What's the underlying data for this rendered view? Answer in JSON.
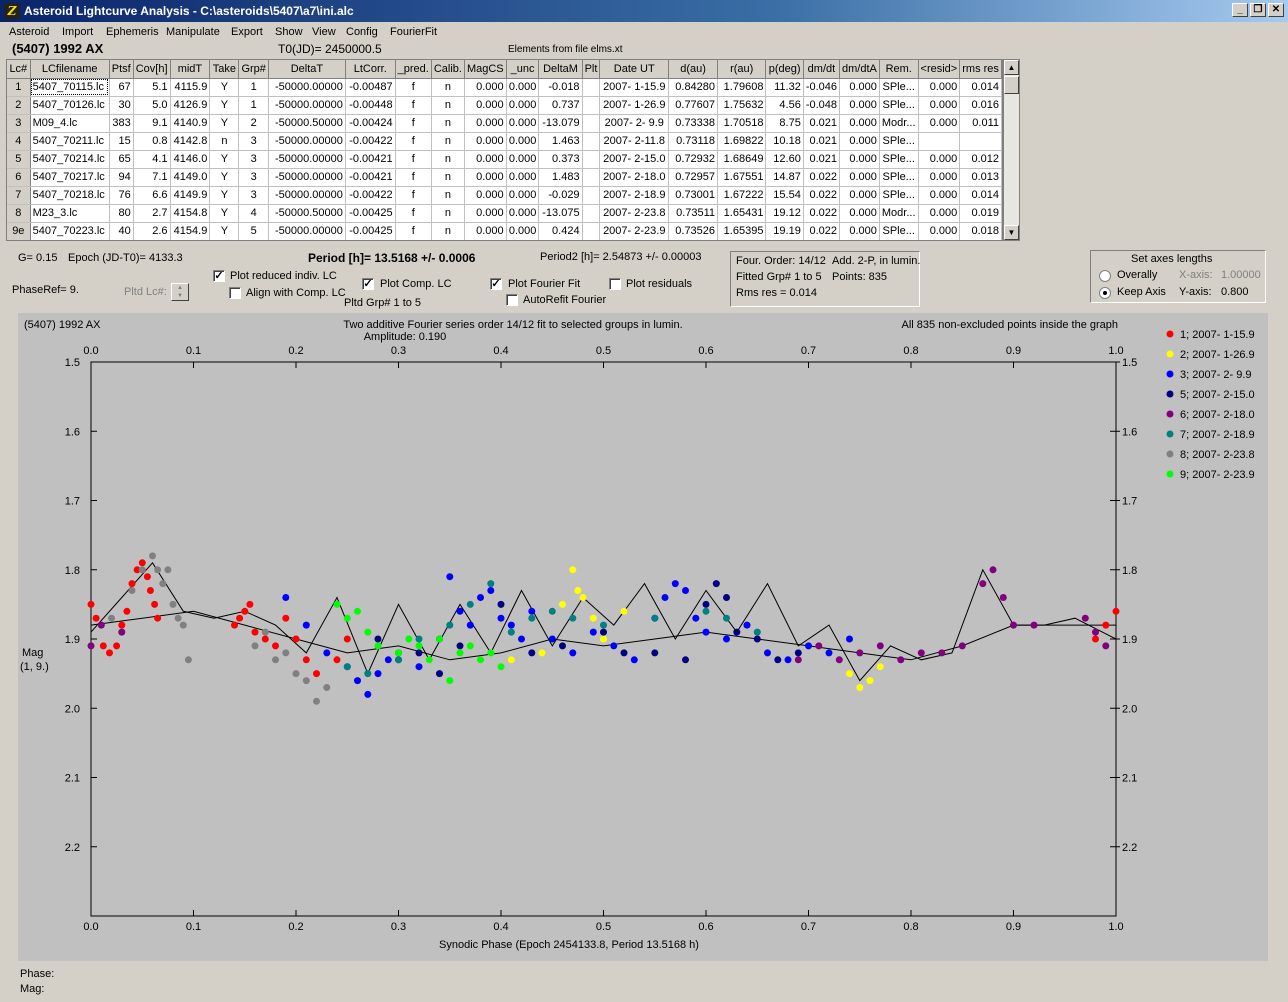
{
  "window": {
    "title": "Asteroid Lightcurve Analysis - C:\\asteroids\\5407\\a7\\ini.alc"
  },
  "menu": [
    "Asteroid",
    "Import",
    "Ephemeris",
    "Manipulate",
    "Export",
    "Show",
    "View",
    "Config",
    "FourierFit"
  ],
  "header": {
    "object": "(5407) 1992 AX",
    "t0": "T0(JD)= 2450000.5",
    "elements": "Elements from file elms.xt"
  },
  "table": {
    "columns": [
      "Lc#",
      "LCfilename",
      "Ptsf",
      "Cov[h]",
      "midT",
      "Take",
      "Grp#",
      "DeltaT",
      "LtCorr.",
      "_pred.",
      "Calib.",
      "MagCS",
      "_unc",
      "DeltaM",
      "Plt",
      "Date UT",
      "d(au)",
      "r(au)",
      "p(deg)",
      "dm/dt",
      "dm/dtA",
      "Rem.",
      "<resid>",
      "rms res"
    ],
    "rows": [
      [
        "1",
        "5407_70115.lc",
        "67",
        "5.1",
        "4115.9",
        "Y",
        "1",
        "-50000.00000",
        "-0.00487",
        "f",
        "n",
        "0.000",
        "0.000",
        "-0.018",
        "",
        "2007- 1-15.9",
        "0.84280",
        "1.79608",
        "11.32",
        "-0.046",
        "0.000",
        "SPle...",
        "0.000",
        "0.014"
      ],
      [
        "2",
        "5407_70126.lc",
        "30",
        "5.0",
        "4126.9",
        "Y",
        "1",
        "-50000.00000",
        "-0.00448",
        "f",
        "n",
        "0.000",
        "0.000",
        "0.737",
        "",
        "2007- 1-26.9",
        "0.77607",
        "1.75632",
        "4.56",
        "-0.048",
        "0.000",
        "SPle...",
        "0.000",
        "0.016"
      ],
      [
        "3",
        "M09_4.lc",
        "383",
        "9.1",
        "4140.9",
        "Y",
        "2",
        "-50000.50000",
        "-0.00424",
        "f",
        "n",
        "0.000",
        "0.000",
        "-13.079",
        "",
        "2007- 2- 9.9",
        "0.73338",
        "1.70518",
        "8.75",
        "0.021",
        "0.000",
        "Modr...",
        "0.000",
        "0.011"
      ],
      [
        "4",
        "5407_70211.lc",
        "15",
        "0.8",
        "4142.8",
        "n",
        "3",
        "-50000.00000",
        "-0.00422",
        "f",
        "n",
        "0.000",
        "0.000",
        "1.463",
        "",
        "2007- 2-11.8",
        "0.73118",
        "1.69822",
        "10.18",
        "0.021",
        "0.000",
        "SPle...",
        "",
        ""
      ],
      [
        "5",
        "5407_70214.lc",
        "65",
        "4.1",
        "4146.0",
        "Y",
        "3",
        "-50000.00000",
        "-0.00421",
        "f",
        "n",
        "0.000",
        "0.000",
        "0.373",
        "",
        "2007- 2-15.0",
        "0.72932",
        "1.68649",
        "12.60",
        "0.021",
        "0.000",
        "SPle...",
        "0.000",
        "0.012"
      ],
      [
        "6",
        "5407_70217.lc",
        "94",
        "7.1",
        "4149.0",
        "Y",
        "3",
        "-50000.00000",
        "-0.00421",
        "f",
        "n",
        "0.000",
        "0.000",
        "1.483",
        "",
        "2007- 2-18.0",
        "0.72957",
        "1.67551",
        "14.87",
        "0.022",
        "0.000",
        "SPle...",
        "0.000",
        "0.013"
      ],
      [
        "7",
        "5407_70218.lc",
        "76",
        "6.6",
        "4149.9",
        "Y",
        "3",
        "-50000.00000",
        "-0.00422",
        "f",
        "n",
        "0.000",
        "0.000",
        "-0.029",
        "",
        "2007- 2-18.9",
        "0.73001",
        "1.67222",
        "15.54",
        "0.022",
        "0.000",
        "SPle...",
        "0.000",
        "0.014"
      ],
      [
        "8",
        "M23_3.lc",
        "80",
        "2.7",
        "4154.8",
        "Y",
        "4",
        "-50000.50000",
        "-0.00425",
        "f",
        "n",
        "0.000",
        "0.000",
        "-13.075",
        "",
        "2007- 2-23.8",
        "0.73511",
        "1.65431",
        "19.12",
        "0.022",
        "0.000",
        "Modr...",
        "0.000",
        "0.019"
      ],
      [
        "9e",
        "5407_70223.lc",
        "40",
        "2.6",
        "4154.9",
        "Y",
        "5",
        "-50000.00000",
        "-0.00425",
        "f",
        "n",
        "0.000",
        "0.000",
        "0.424",
        "",
        "2007- 2-23.9",
        "0.73526",
        "1.65395",
        "19.19",
        "0.022",
        "0.000",
        "SPle...",
        "0.000",
        "0.018"
      ]
    ]
  },
  "params": {
    "g": "G= 0.15",
    "epoch": "Epoch (JD-T0)= 4133.3",
    "period": "Period [h]= 13.5168 +/- 0.0006",
    "period2": "Period2 [h]= 2.54873 +/- 0.00003",
    "phase_ref": "PhaseRef= 9.",
    "pltd_lc": "Pltd Lc#:",
    "pltd_grp": "Pltd Grp#  1   to   5"
  },
  "options": {
    "plot_reduced": {
      "label": "Plot reduced indiv. LC",
      "checked": true
    },
    "align_comp": {
      "label": "Align with Comp. LC",
      "checked": false
    },
    "plot_comp": {
      "label": "Plot Comp. LC",
      "checked": true
    },
    "plot_fourier": {
      "label": "Plot Fourier Fit",
      "checked": true
    },
    "autorefit": {
      "label": "AutoRefit Fourier",
      "checked": false
    },
    "plot_residuals": {
      "label": "Plot residuals",
      "checked": false
    }
  },
  "fourier_info": {
    "order": "Four. Order: 14/12",
    "add": "Add. 2-P, in lumin.",
    "fitted": "Fitted Grp# 1 to 5",
    "points": "Points: 835",
    "rms": "Rms res      = 0.014"
  },
  "axes_box": {
    "title": "Set axes lengths",
    "overally": "Overally",
    "keep_axis": "Keep Axis",
    "x_axis_label": "X-axis:",
    "x_axis_value": "1.00000",
    "y_axis_label": "Y-axis:",
    "y_axis_value": "0.800",
    "selected": "keep_axis"
  },
  "graph": {
    "object": "(5407) 1992 AX",
    "title1": "Two additive Fourier series order 14/12 fit to selected groups in lumin.",
    "title2": "Amplitude: 0.190",
    "note": "All 835 non-excluded points inside the graph",
    "ylabel": "Mag",
    "ylabel2": "(1, 9.)",
    "xlabel": "Synodic Phase (Epoch 2454133.8, Period 13.5168 h)"
  },
  "chart_data": {
    "type": "scatter",
    "xlim": [
      0.0,
      1.0
    ],
    "ylim": [
      1.5,
      2.3
    ],
    "y_inverted": true,
    "x_ticks": [
      0.0,
      0.1,
      0.2,
      0.3,
      0.4,
      0.5,
      0.6,
      0.7,
      0.8,
      0.9,
      1.0
    ],
    "x_tick_labels": [
      "0.0",
      "0.1",
      "0.2",
      "0.3",
      "0.4",
      "0.5",
      "0.6",
      "0.7",
      "0.8",
      "0.9",
      "1.0"
    ],
    "y_ticks": [
      1.5,
      1.6,
      1.7,
      1.8,
      1.9,
      2.0,
      2.1,
      2.2
    ],
    "y_tick_labels": [
      "1.5",
      "1.6",
      "1.7",
      "1.8",
      "1.9",
      "2.0",
      "2.1",
      "2.2"
    ],
    "legend_position": "right",
    "series": [
      {
        "name": "1; 2007- 1-15.9",
        "color": "#ff0000",
        "x": [
          0.0,
          0.005,
          0.012,
          0.018,
          0.025,
          0.03,
          0.035,
          0.04,
          0.045,
          0.05,
          0.055,
          0.058,
          0.062,
          0.065,
          0.14,
          0.145,
          0.15,
          0.155,
          0.16,
          0.17,
          0.18,
          0.19,
          0.2,
          0.21,
          0.22,
          0.24,
          0.25,
          0.98,
          0.99,
          1.0
        ],
        "y": [
          1.85,
          1.87,
          1.91,
          1.92,
          1.91,
          1.88,
          1.86,
          1.82,
          1.8,
          1.79,
          1.81,
          1.83,
          1.85,
          1.87,
          1.88,
          1.87,
          1.86,
          1.85,
          1.89,
          1.9,
          1.91,
          1.87,
          1.9,
          1.93,
          1.95,
          1.93,
          1.9,
          1.9,
          1.88,
          1.86
        ]
      },
      {
        "name": "2; 2007- 1-26.9",
        "color": "#ffff00",
        "x": [
          0.41,
          0.42,
          0.44,
          0.46,
          0.47,
          0.475,
          0.48,
          0.49,
          0.5,
          0.51,
          0.52,
          0.74,
          0.75,
          0.76,
          0.77
        ],
        "y": [
          1.93,
          1.9,
          1.92,
          1.85,
          1.8,
          1.83,
          1.84,
          1.87,
          1.9,
          1.91,
          1.86,
          1.95,
          1.97,
          1.96,
          1.94
        ]
      },
      {
        "name": "3; 2007- 2- 9.9",
        "color": "#0000ff",
        "x": [
          0.19,
          0.21,
          0.23,
          0.25,
          0.26,
          0.27,
          0.28,
          0.29,
          0.3,
          0.32,
          0.34,
          0.35,
          0.36,
          0.37,
          0.38,
          0.39,
          0.4,
          0.41,
          0.42,
          0.43,
          0.45,
          0.47,
          0.49,
          0.51,
          0.53,
          0.55,
          0.56,
          0.57,
          0.58,
          0.59,
          0.6,
          0.62,
          0.64,
          0.66,
          0.68,
          0.7,
          0.72,
          0.74
        ],
        "y": [
          1.84,
          1.88,
          1.92,
          1.94,
          1.96,
          1.98,
          1.95,
          1.93,
          1.92,
          1.94,
          1.9,
          1.81,
          1.86,
          1.88,
          1.84,
          1.83,
          1.87,
          1.88,
          1.9,
          1.86,
          1.9,
          1.92,
          1.89,
          1.91,
          1.93,
          1.87,
          1.84,
          1.82,
          1.83,
          1.87,
          1.89,
          1.9,
          1.88,
          1.92,
          1.93,
          1.91,
          1.92,
          1.9
        ]
      },
      {
        "name": "5; 2007- 2-15.0",
        "color": "#000080",
        "x": [
          0.28,
          0.3,
          0.32,
          0.34,
          0.36,
          0.4,
          0.43,
          0.46,
          0.5,
          0.52,
          0.55,
          0.58,
          0.6,
          0.61,
          0.62,
          0.63,
          0.65,
          0.67,
          0.69
        ],
        "y": [
          1.9,
          1.93,
          1.92,
          1.95,
          1.91,
          1.85,
          1.92,
          1.91,
          1.89,
          1.92,
          1.92,
          1.93,
          1.85,
          1.82,
          1.84,
          1.89,
          1.9,
          1.93,
          1.92
        ]
      },
      {
        "name": "6; 2007- 2-18.0",
        "color": "#800080",
        "x": [
          0.0,
          0.01,
          0.03,
          0.69,
          0.71,
          0.73,
          0.75,
          0.77,
          0.79,
          0.81,
          0.83,
          0.85,
          0.87,
          0.88,
          0.89,
          0.9,
          0.92,
          0.97,
          0.98,
          0.99
        ],
        "y": [
          1.91,
          1.88,
          1.89,
          1.93,
          1.91,
          1.93,
          1.92,
          1.91,
          1.93,
          1.92,
          1.92,
          1.91,
          1.82,
          1.8,
          1.84,
          1.88,
          1.88,
          1.87,
          1.89,
          1.91
        ]
      },
      {
        "name": "7; 2007- 2-18.9",
        "color": "#008080",
        "x": [
          0.25,
          0.27,
          0.3,
          0.32,
          0.35,
          0.37,
          0.39,
          0.41,
          0.43,
          0.45,
          0.47,
          0.5,
          0.55,
          0.6,
          0.62,
          0.65
        ],
        "y": [
          1.94,
          1.95,
          1.93,
          1.9,
          1.88,
          1.85,
          1.82,
          1.89,
          1.87,
          1.86,
          1.87,
          1.88,
          1.87,
          1.86,
          1.87,
          1.89
        ]
      },
      {
        "name": "8; 2007- 2-23.8",
        "color": "#808080",
        "x": [
          0.02,
          0.04,
          0.05,
          0.06,
          0.065,
          0.07,
          0.075,
          0.08,
          0.085,
          0.09,
          0.095,
          0.16,
          0.17,
          0.18,
          0.19,
          0.2,
          0.21,
          0.22,
          0.23
        ],
        "y": [
          1.87,
          1.83,
          1.8,
          1.78,
          1.8,
          1.82,
          1.8,
          1.85,
          1.87,
          1.88,
          1.93,
          1.91,
          1.89,
          1.93,
          1.92,
          1.95,
          1.96,
          1.99,
          1.97
        ]
      },
      {
        "name": "9; 2007- 2-23.9",
        "color": "#00ff00",
        "x": [
          0.24,
          0.25,
          0.26,
          0.27,
          0.28,
          0.3,
          0.31,
          0.32,
          0.33,
          0.34,
          0.35,
          0.36,
          0.37,
          0.38,
          0.39,
          0.4
        ],
        "y": [
          1.85,
          1.87,
          1.86,
          1.89,
          1.91,
          1.92,
          1.9,
          1.91,
          1.93,
          1.9,
          1.96,
          1.92,
          1.91,
          1.93,
          1.92,
          1.94
        ]
      }
    ],
    "fit_lines": [
      {
        "name": "",
        "x": [
          0.0,
          0.03,
          0.06,
          0.09,
          0.12,
          0.15,
          0.18,
          0.21,
          0.24,
          0.27,
          0.3,
          0.33,
          0.36,
          0.39,
          0.42,
          0.45,
          0.48,
          0.51,
          0.54,
          0.57,
          0.6,
          0.63,
          0.66,
          0.69,
          0.72,
          0.75,
          0.78,
          0.81,
          0.84,
          0.87,
          0.9,
          0.93,
          0.96,
          1.0
        ],
        "y": [
          1.89,
          1.84,
          1.79,
          1.86,
          1.87,
          1.86,
          1.88,
          1.92,
          1.84,
          1.95,
          1.85,
          1.93,
          1.85,
          1.92,
          1.83,
          1.91,
          1.84,
          1.88,
          1.82,
          1.9,
          1.83,
          1.89,
          1.82,
          1.91,
          1.88,
          1.96,
          1.91,
          1.93,
          1.92,
          1.8,
          1.88,
          1.88,
          1.87,
          1.9
        ]
      },
      {
        "name": "",
        "x": [
          0.0,
          0.05,
          0.1,
          0.15,
          0.2,
          0.25,
          0.3,
          0.35,
          0.4,
          0.45,
          0.5,
          0.55,
          0.6,
          0.65,
          0.7,
          0.75,
          0.8,
          0.85,
          0.9,
          0.95,
          1.0
        ],
        "y": [
          1.88,
          1.87,
          1.86,
          1.88,
          1.9,
          1.92,
          1.91,
          1.93,
          1.92,
          1.9,
          1.91,
          1.9,
          1.89,
          1.9,
          1.91,
          1.92,
          1.93,
          1.91,
          1.88,
          1.88,
          1.88
        ]
      }
    ]
  }
}
